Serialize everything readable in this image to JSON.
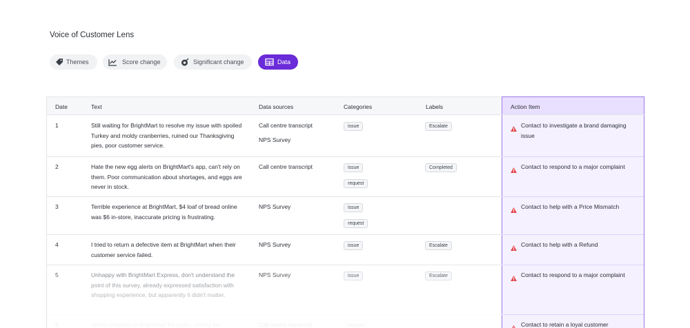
{
  "header": {
    "title": "Voice of Customer Lens"
  },
  "tabs": [
    "Themes",
    "Score change",
    "Significant change",
    "Data"
  ],
  "table": {
    "columns": [
      "Date",
      "Text",
      "Data sources",
      "Categories",
      "Labels",
      "Action Item"
    ],
    "rows": [
      {
        "date": "1",
        "text": "Still waiting for BrightMart to resolve my issue with spoiled Turkey and moldy cranberries, ruined our Thanksgiving pies, poor customer service.",
        "sources": [
          "Call centre transcript",
          "NPS Survey"
        ],
        "categories": [
          "issue"
        ],
        "labels": [
          "Escalate"
        ],
        "action": "Contact to investigate a brand damaging issue"
      },
      {
        "date": "2",
        "text": "Hate the new egg alerts on BrightMart's app, can't rely on them. Poor communication about shortages, and eggs are never in stock.",
        "sources": [
          "Call centre transcript"
        ],
        "categories": [
          "issue",
          "request"
        ],
        "labels": [
          "Completed"
        ],
        "action": "Contact to respond to a major complaint"
      },
      {
        "date": "3",
        "text": "Terrible experience at BrightMart, $4 loaf of bread online was $6 in-store, inaccurate pricing is frustrating.",
        "sources": [
          "NPS Survey"
        ],
        "categories": [
          "issue",
          "request"
        ],
        "labels": [],
        "action": "Contact to help with a Price Mismatch"
      },
      {
        "date": "4",
        "text": "I tried to return a defective item at BrightMart when their customer service failed.",
        "sources": [
          "NPS Survey"
        ],
        "categories": [
          "issue"
        ],
        "labels": [
          "Escalate"
        ],
        "action": "Contact to help with a Refund"
      },
      {
        "date": "5",
        "text": "Unhappy with BrightMart Express, don't understand the point of this survey, already expressed satisfaction with shopping experience, but apparently it didn't matter.",
        "sources": [
          "NPS Survey"
        ],
        "categories": [
          "issue"
        ],
        "labels": [
          "Escalate"
        ],
        "action": "Contact to respond to a major complaint"
      },
      {
        "date": "6",
        "text": "We've shopped at BrightMart for years, mainly for",
        "sources": [
          "Call centre transcript"
        ],
        "categories": [
          "request"
        ],
        "labels": [],
        "action": "Contact to retain a loyal customer"
      }
    ]
  }
}
